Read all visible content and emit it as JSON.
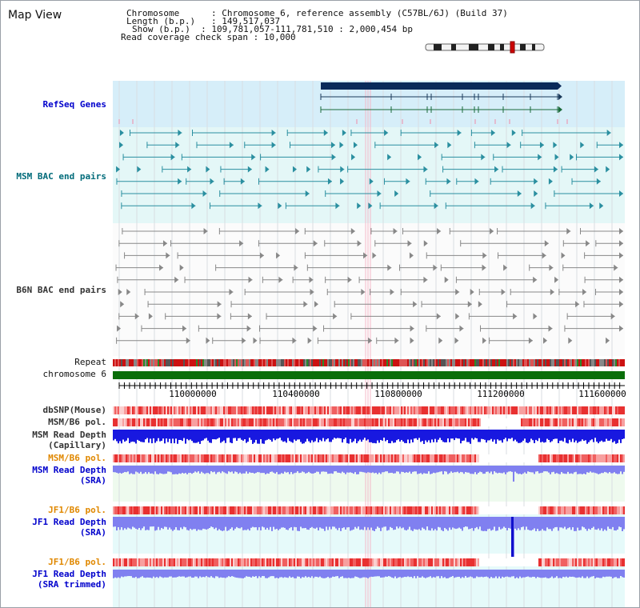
{
  "header": {
    "title": "Map View",
    "chromosome_label": "Chromosome",
    "chromosome_value": "Chromosome 6, reference assembly (C57BL/6J) (Build 37)",
    "length_label": "Length (b.p.)",
    "length_value": "149,517,037",
    "show_label": "Show (b.p.)",
    "show_value": "109,781,057-111,781,510 : 2,000,454 bp",
    "coverage_label": "Read coverage check span",
    "coverage_value": "10,000"
  },
  "tracks": {
    "refseq": "RefSeq Genes",
    "msm_bac": "MSM BAC end pairs",
    "b6n_bac": "B6N BAC end pairs",
    "repeat": "Repeat",
    "chromosome": "chromosome 6",
    "dbsnp": "dbSNP(Mouse)",
    "msm_b6_pol_1": "MSM/B6 pol.",
    "msm_depth_cap_1": "MSM Read Depth",
    "msm_depth_cap_2": "(Capillary)",
    "msm_b6_pol_2": "MSM/B6 pol.",
    "msm_depth_sra_1": "MSM Read Depth",
    "msm_depth_sra_2": "(SRA)",
    "jf1_b6_pol_1": "JF1/B6 pol.",
    "jf1_depth_sra_1": "JF1 Read Depth",
    "jf1_depth_sra_2": "(SRA)",
    "jf1_b6_pol_2": "JF1/B6 pol.",
    "jf1_depth_trim_1": "JF1 Read Depth",
    "jf1_depth_trim_2": "(SRA trimmed)"
  },
  "axis": {
    "ticks": [
      "110000000",
      "110400000",
      "110800000",
      "111200000",
      "111600000"
    ]
  },
  "colors": {
    "refseq_bg": "#d6eef9",
    "msm_bg": "#e4f7f7",
    "gene_bar": "#0a2a5a",
    "msm_glyph": "#2a8fa0",
    "b6n_glyph": "#888888",
    "chromosome": "#0a6e0a",
    "depth_blue": "#1010dd",
    "depth_light": "#8080f0",
    "pol_red": "#e84040"
  }
}
